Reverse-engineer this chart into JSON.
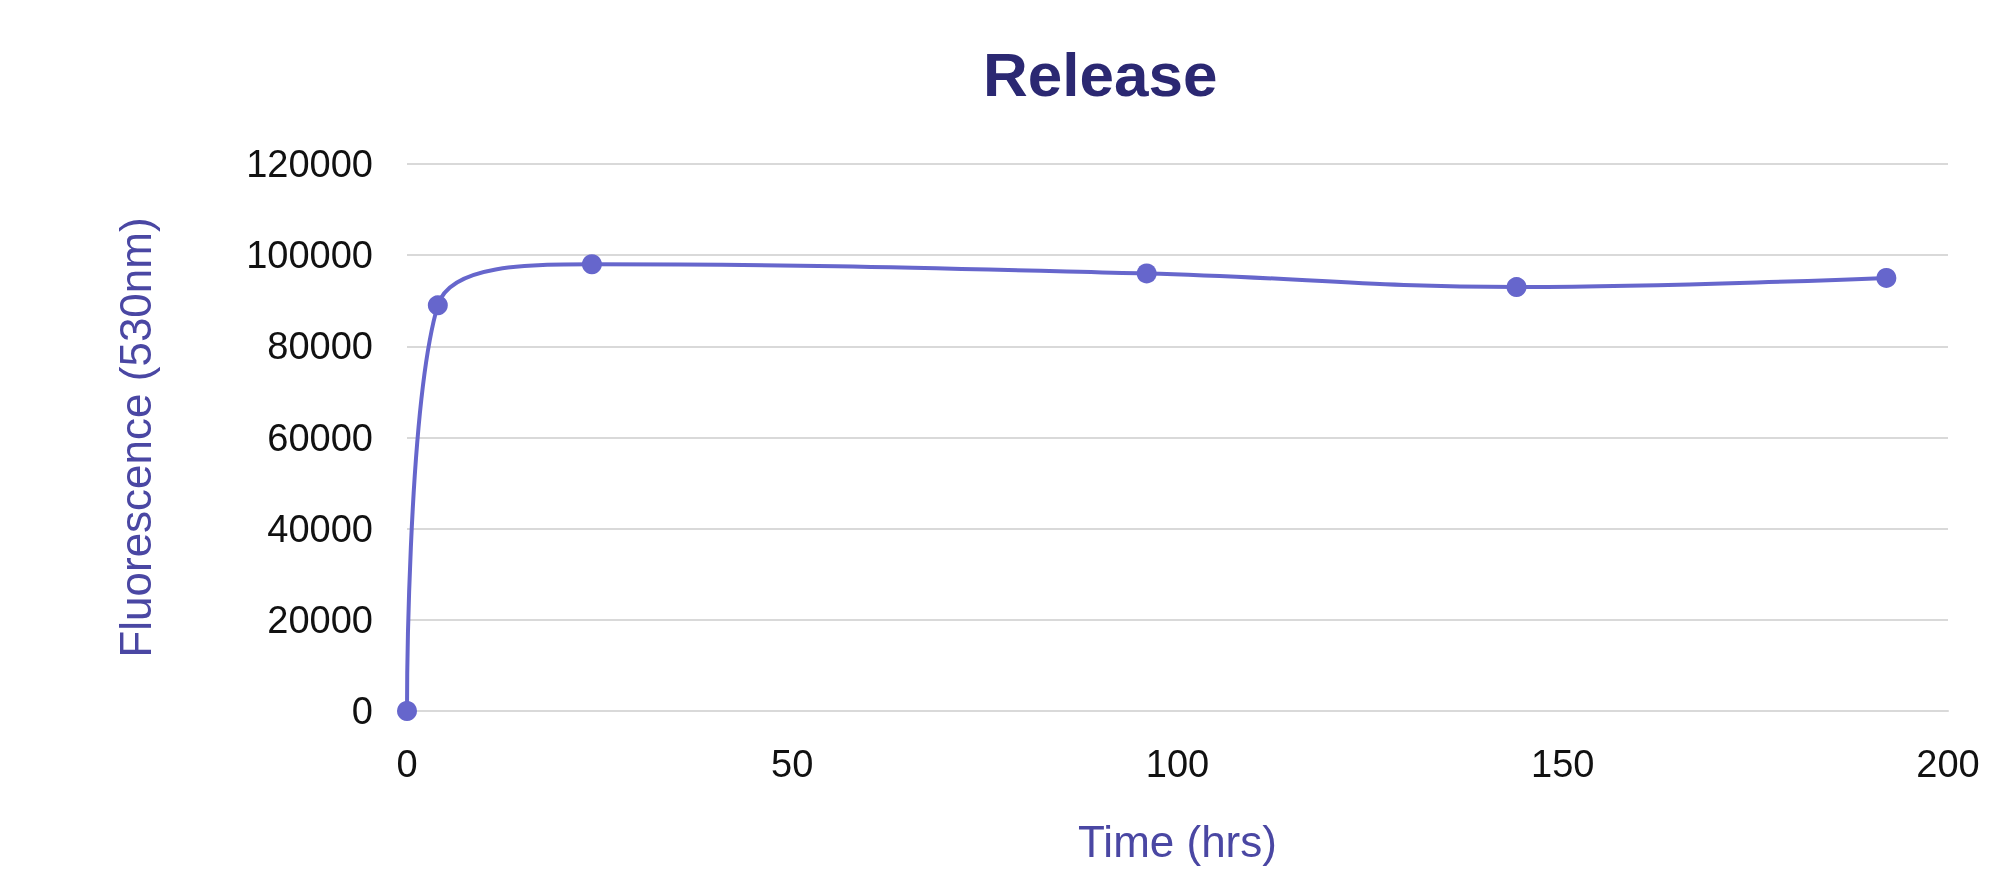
{
  "chart_data": {
    "type": "line",
    "title": "Release",
    "xlabel": "Time (hrs)",
    "ylabel": "Fluorescence (530nm)",
    "x": [
      0,
      4,
      24,
      96,
      144,
      192
    ],
    "series": [
      {
        "color": "#6666cc",
        "values": [
          0,
          89000,
          98000,
          96000,
          93000,
          95000
        ]
      }
    ],
    "xlim": [
      0,
      200
    ],
    "xticks": [
      0,
      50,
      100,
      150,
      200
    ],
    "ylim": [
      0,
      120000
    ],
    "yticks": [
      0,
      20000,
      40000,
      60000,
      80000,
      100000,
      120000
    ],
    "grid": "y",
    "marker": "circle",
    "line_style": "solid"
  }
}
